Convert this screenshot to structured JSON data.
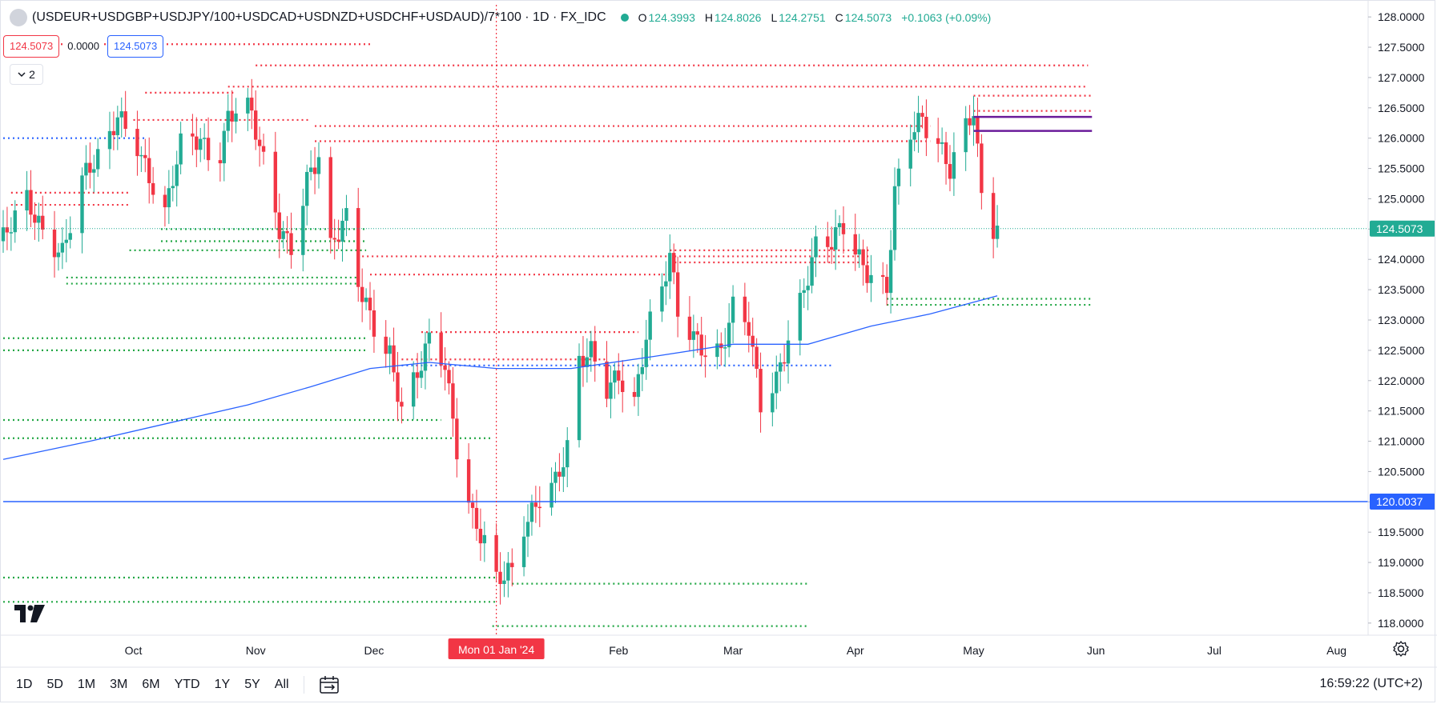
{
  "header": {
    "title": "(USDEUR+USDGBP+USDJPY/100+USDCAD+USDNZD+USDCHF+USDAUD)/7*100 · 1D · FX_IDC",
    "ohlc": [
      {
        "key": "O",
        "value": "124.3993"
      },
      {
        "key": "H",
        "value": "124.8026"
      },
      {
        "key": "L",
        "value": "124.2751"
      },
      {
        "key": "C",
        "value": "124.5073"
      },
      {
        "key": "",
        "value": "+0.1063 (+0.09%)"
      }
    ],
    "status_color": "#22ab94"
  },
  "pills": {
    "sell": "124.5073",
    "spread": "0.0000",
    "buy": "124.5073"
  },
  "indicators_toggle": {
    "count": "2"
  },
  "timeframes": [
    "1D",
    "5D",
    "1M",
    "3M",
    "6M",
    "YTD",
    "1Y",
    "5Y",
    "All"
  ],
  "clock": "16:59:22 (UTC+2)",
  "icons": {
    "calendar": "calendar-range-icon",
    "settings": "gear-icon",
    "logo": "tradingview-logo-icon",
    "collapse": "chevron-down-icon"
  },
  "colors": {
    "up": "#22ab94",
    "down": "#f23645",
    "ma": "#2962ff",
    "hline": "#2962ff",
    "purple": "#6a1b9a",
    "green_level": "#22a745"
  },
  "chart_data": {
    "type": "candlestick",
    "ylim": [
      117.8,
      128.2
    ],
    "y_ticks": [
      "128.0000",
      "127.5000",
      "127.0000",
      "126.5000",
      "126.0000",
      "125.5000",
      "125.0000",
      "124.5000",
      "124.0000",
      "123.5000",
      "123.0000",
      "122.5000",
      "122.0000",
      "121.5000",
      "121.0000",
      "120.5000",
      "120.0000",
      "119.5000",
      "119.0000",
      "118.5000",
      "118.0000"
    ],
    "x_ticks": [
      {
        "label": "Oct",
        "date": "2023-10-01"
      },
      {
        "label": "Nov",
        "date": "2023-11-01"
      },
      {
        "label": "Dec",
        "date": "2023-12-01"
      },
      {
        "label": "Feb",
        "date": "2024-02-01"
      },
      {
        "label": "Mar",
        "date": "2024-03-01"
      },
      {
        "label": "Apr",
        "date": "2024-04-01"
      },
      {
        "label": "May",
        "date": "2024-05-01"
      },
      {
        "label": "Jun",
        "date": "2024-06-01"
      },
      {
        "label": "Jul",
        "date": "2024-07-01"
      },
      {
        "label": "Aug",
        "date": "2024-08-01"
      }
    ],
    "x_range": [
      "2023-08-29",
      "2024-08-09"
    ],
    "crosshair": {
      "date": "2024-01-01",
      "label": "Mon 01 Jan '24"
    },
    "last_price": {
      "value": 124.5073,
      "label": "124.5073"
    },
    "horizontal_line": {
      "value": 120.0037,
      "label": "120.0037"
    },
    "price_path": [
      [
        "2023-08-29",
        124.3
      ],
      [
        "2023-09-04",
        124.9
      ],
      [
        "2023-09-08",
        124.5
      ],
      [
        "2023-09-13",
        124.2
      ],
      [
        "2023-09-18",
        125.3
      ],
      [
        "2023-09-24",
        125.7
      ],
      [
        "2023-09-27",
        126.4
      ],
      [
        "2023-10-02",
        126.0
      ],
      [
        "2023-10-05",
        125.4
      ],
      [
        "2023-10-09",
        124.7
      ],
      [
        "2023-10-13",
        125.8
      ],
      [
        "2023-10-18",
        126.0
      ],
      [
        "2023-10-22",
        125.6
      ],
      [
        "2023-10-25",
        126.4
      ],
      [
        "2023-10-29",
        126.6
      ],
      [
        "2023-10-31",
        126.3
      ],
      [
        "2023-11-03",
        125.5
      ],
      [
        "2023-11-07",
        124.5
      ],
      [
        "2023-11-10",
        124.3
      ],
      [
        "2023-11-14",
        125.4
      ],
      [
        "2023-11-17",
        125.7
      ],
      [
        "2023-11-20",
        124.1
      ],
      [
        "2023-11-24",
        124.6
      ],
      [
        "2023-11-27",
        123.6
      ],
      [
        "2023-12-01",
        123.0
      ],
      [
        "2023-12-05",
        122.5
      ],
      [
        "2023-12-08",
        121.5
      ],
      [
        "2023-12-12",
        122.0
      ],
      [
        "2023-12-15",
        122.6
      ],
      [
        "2023-12-19",
        122.3
      ],
      [
        "2023-12-22",
        121.0
      ],
      [
        "2023-12-26",
        119.8
      ],
      [
        "2023-12-29",
        119.3
      ],
      [
        "2024-01-01",
        118.6
      ],
      [
        "2024-01-05",
        118.8
      ],
      [
        "2024-01-08",
        119.6
      ],
      [
        "2024-01-12",
        120.2
      ],
      [
        "2024-01-16",
        120.4
      ],
      [
        "2024-01-19",
        120.8
      ],
      [
        "2024-01-22",
        122.2
      ],
      [
        "2024-01-25",
        122.4
      ],
      [
        "2024-01-29",
        121.9
      ],
      [
        "2024-02-01",
        122.2
      ],
      [
        "2024-02-05",
        121.7
      ],
      [
        "2024-02-08",
        122.7
      ],
      [
        "2024-02-12",
        123.4
      ],
      [
        "2024-02-14",
        124.0
      ],
      [
        "2024-02-16",
        123.1
      ],
      [
        "2024-02-20",
        122.8
      ],
      [
        "2024-02-23",
        122.6
      ],
      [
        "2024-02-27",
        122.5
      ],
      [
        "2024-03-01",
        123.1
      ],
      [
        "2024-03-05",
        122.8
      ],
      [
        "2024-03-08",
        121.6
      ],
      [
        "2024-03-12",
        122.1
      ],
      [
        "2024-03-15",
        122.8
      ],
      [
        "2024-03-19",
        123.5
      ],
      [
        "2024-03-22",
        124.1
      ],
      [
        "2024-03-26",
        124.2
      ],
      [
        "2024-03-29",
        124.6
      ],
      [
        "2024-04-02",
        124.1
      ],
      [
        "2024-04-05",
        123.8
      ],
      [
        "2024-04-09",
        123.5
      ],
      [
        "2024-04-11",
        125.0
      ],
      [
        "2024-04-15",
        126.0
      ],
      [
        "2024-04-18",
        126.3
      ],
      [
        "2024-04-22",
        126.0
      ],
      [
        "2024-04-25",
        125.6
      ],
      [
        "2024-04-29",
        126.2
      ],
      [
        "2024-05-01",
        126.4
      ],
      [
        "2024-05-03",
        124.9
      ],
      [
        "2024-05-06",
        124.4
      ],
      [
        "2024-05-07",
        124.51
      ]
    ],
    "moving_average": [
      [
        "2023-08-29",
        120.7
      ],
      [
        "2023-09-20",
        121.0
      ],
      [
        "2023-10-10",
        121.3
      ],
      [
        "2023-10-30",
        121.6
      ],
      [
        "2023-11-15",
        121.9
      ],
      [
        "2023-11-30",
        122.2
      ],
      [
        "2023-12-15",
        122.3
      ],
      [
        "2024-01-01",
        122.2
      ],
      [
        "2024-01-20",
        122.2
      ],
      [
        "2024-02-10",
        122.4
      ],
      [
        "2024-03-01",
        122.6
      ],
      [
        "2024-03-20",
        122.6
      ],
      [
        "2024-04-05",
        122.9
      ],
      [
        "2024-04-20",
        123.1
      ],
      [
        "2024-05-07",
        123.4
      ]
    ],
    "levels": [
      {
        "value": 127.55,
        "start": "2023-08-29",
        "end": "2023-11-30",
        "kind": "resistance"
      },
      {
        "value": 127.2,
        "start": "2023-11-01",
        "end": "2024-05-30",
        "kind": "resistance"
      },
      {
        "value": 126.85,
        "start": "2023-10-25",
        "end": "2024-05-30",
        "kind": "resistance"
      },
      {
        "value": 126.75,
        "start": "2023-10-04",
        "end": "2023-10-27",
        "kind": "resistance"
      },
      {
        "value": 126.7,
        "start": "2024-05-01",
        "end": "2024-05-31",
        "kind": "resistance"
      },
      {
        "value": 126.45,
        "start": "2024-05-01",
        "end": "2024-05-31",
        "kind": "resistance"
      },
      {
        "value": 126.3,
        "start": "2023-10-01",
        "end": "2023-11-15",
        "kind": "resistance"
      },
      {
        "value": 126.2,
        "start": "2023-11-16",
        "end": "2024-04-20",
        "kind": "resistance"
      },
      {
        "value": 126.0,
        "start": "2023-08-29",
        "end": "2023-10-04",
        "kind": "ma-level"
      },
      {
        "value": 125.95,
        "start": "2023-11-16",
        "end": "2024-04-20",
        "kind": "resistance"
      },
      {
        "value": 125.1,
        "start": "2023-08-31",
        "end": "2023-09-30",
        "kind": "resistance"
      },
      {
        "value": 124.9,
        "start": "2023-08-31",
        "end": "2023-09-30",
        "kind": "resistance"
      },
      {
        "value": 124.5,
        "start": "2023-10-08",
        "end": "2023-11-29",
        "kind": "support"
      },
      {
        "value": 124.3,
        "start": "2023-10-08",
        "end": "2023-11-29",
        "kind": "support"
      },
      {
        "value": 124.15,
        "start": "2023-09-30",
        "end": "2023-11-29",
        "kind": "support"
      },
      {
        "value": 124.15,
        "start": "2024-02-14",
        "end": "2024-04-05",
        "kind": "resistance"
      },
      {
        "value": 124.05,
        "start": "2023-11-28",
        "end": "2024-04-05",
        "kind": "resistance"
      },
      {
        "value": 123.95,
        "start": "2024-02-14",
        "end": "2024-04-05",
        "kind": "resistance"
      },
      {
        "value": 123.75,
        "start": "2023-11-30",
        "end": "2024-02-14",
        "kind": "resistance"
      },
      {
        "value": 123.7,
        "start": "2023-09-14",
        "end": "2023-11-27",
        "kind": "support"
      },
      {
        "value": 123.6,
        "start": "2023-09-14",
        "end": "2023-11-27",
        "kind": "support"
      },
      {
        "value": 123.35,
        "start": "2024-04-09",
        "end": "2024-05-31",
        "kind": "support"
      },
      {
        "value": 123.25,
        "start": "2024-04-09",
        "end": "2024-05-31",
        "kind": "support"
      },
      {
        "value": 122.8,
        "start": "2023-12-13",
        "end": "2024-02-06",
        "kind": "resistance"
      },
      {
        "value": 122.7,
        "start": "2023-08-29",
        "end": "2023-11-29",
        "kind": "support"
      },
      {
        "value": 122.5,
        "start": "2023-08-29",
        "end": "2023-11-29",
        "kind": "support"
      },
      {
        "value": 122.35,
        "start": "2023-12-08",
        "end": "2024-01-29",
        "kind": "resistance"
      },
      {
        "value": 122.25,
        "start": "2023-12-08",
        "end": "2024-03-26",
        "kind": "ma-level"
      },
      {
        "value": 121.35,
        "start": "2023-08-29",
        "end": "2023-12-18",
        "kind": "support"
      },
      {
        "value": 121.05,
        "start": "2023-08-29",
        "end": "2023-12-31",
        "kind": "support"
      },
      {
        "value": 118.75,
        "start": "2023-08-29",
        "end": "2024-01-01",
        "kind": "support"
      },
      {
        "value": 118.65,
        "start": "2024-01-05",
        "end": "2024-03-20",
        "kind": "support"
      },
      {
        "value": 118.35,
        "start": "2023-08-29",
        "end": "2024-01-01",
        "kind": "support"
      },
      {
        "value": 117.95,
        "start": "2023-12-31",
        "end": "2024-03-20",
        "kind": "support"
      }
    ],
    "purple_segments": [
      {
        "value": 126.35,
        "start": "2024-05-01",
        "end": "2024-05-31"
      },
      {
        "value": 126.12,
        "start": "2024-05-01",
        "end": "2024-05-31"
      }
    ]
  }
}
